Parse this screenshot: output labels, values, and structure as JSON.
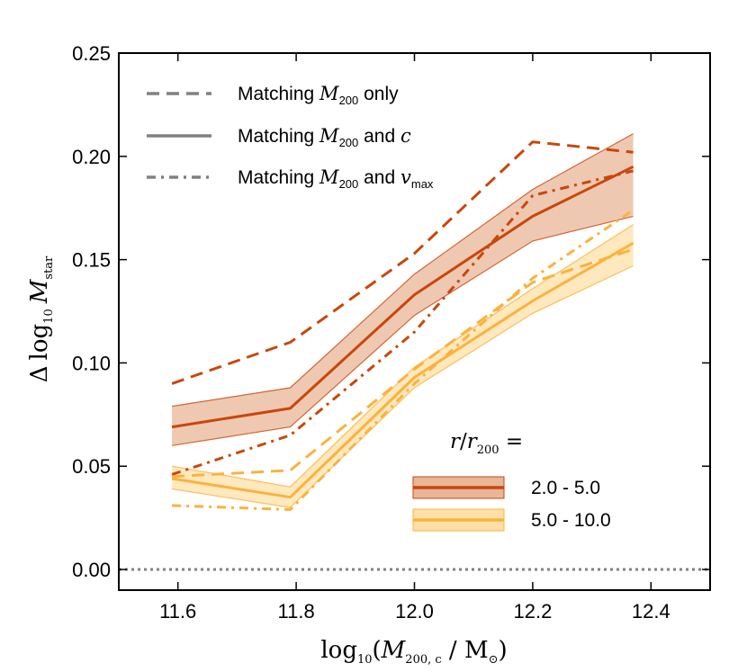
{
  "chart_data": {
    "type": "line",
    "xlabel_parts": {
      "func": "log",
      "func_sub": "10",
      "var": "M",
      "var_sub": "200, c",
      "sep": " / M",
      "unit_sub": "⊙"
    },
    "ylabel_parts": {
      "delta": "Δ",
      "func": "log",
      "func_sub": "10",
      "var": "M",
      "var_sub": "star"
    },
    "xlim": [
      11.5,
      12.5
    ],
    "ylim": [
      -0.01,
      0.25
    ],
    "xticks": [
      11.6,
      11.8,
      12.0,
      12.2,
      12.4
    ],
    "xtick_labels": [
      "11.6",
      "11.8",
      "12.0",
      "12.2",
      "12.4"
    ],
    "yticks": [
      0.0,
      0.05,
      0.1,
      0.15,
      0.2,
      0.25
    ],
    "ytick_labels": [
      "0.00",
      "0.05",
      "0.10",
      "0.15",
      "0.20",
      "0.25"
    ],
    "reference_line": {
      "y": 0.0,
      "style": "dotted",
      "color": "#808080"
    },
    "x": [
      11.59,
      11.79,
      12.0,
      12.2,
      12.37
    ],
    "series": [
      {
        "name": "2.0 - 5.0",
        "color": "#c9470a",
        "fill_color": "#e9b598",
        "matching_m200_only": [
          0.09,
          0.11,
          0.153,
          0.207,
          0.202
        ],
        "matching_m200_and_c": [
          0.069,
          0.078,
          0.133,
          0.171,
          0.195
        ],
        "matching_m200_and_c_lower": [
          0.06,
          0.069,
          0.123,
          0.159,
          0.171
        ],
        "matching_m200_and_c_upper": [
          0.079,
          0.088,
          0.143,
          0.184,
          0.211
        ],
        "matching_m200_and_vmax": [
          0.046,
          0.065,
          0.115,
          0.181,
          0.193
        ]
      },
      {
        "name": "5.0 - 10.0",
        "color": "#fbb23d",
        "fill_color": "#fde0a8",
        "matching_m200_only": [
          0.045,
          0.048,
          0.097,
          0.139,
          0.155
        ],
        "matching_m200_and_c": [
          0.044,
          0.035,
          0.093,
          0.13,
          0.158
        ],
        "matching_m200_and_c_lower": [
          0.039,
          0.03,
          0.088,
          0.124,
          0.147
        ],
        "matching_m200_and_c_upper": [
          0.05,
          0.04,
          0.098,
          0.136,
          0.167
        ],
        "matching_m200_and_vmax": [
          0.031,
          0.029,
          0.09,
          0.141,
          0.174
        ]
      }
    ],
    "style_legend": [
      {
        "style": "dashed",
        "prefix": "Matching ",
        "var": "M",
        "sub": "200",
        "suffix": " only",
        "var2": "",
        "sub2": ""
      },
      {
        "style": "solid",
        "prefix": "Matching ",
        "var": "M",
        "sub": "200",
        "suffix": " and ",
        "var2": "c",
        "sub2": ""
      },
      {
        "style": "dashdot",
        "prefix": "Matching ",
        "var": "M",
        "sub": "200",
        "suffix": " and ",
        "var2": "v",
        "sub2": "max"
      }
    ],
    "radius_legend_title": {
      "var": "r",
      "sep": "/",
      "var2": "r",
      "sub2": "200",
      "eq": " ="
    },
    "legend_placement": "top-left (line styles), bottom-right (radius bins)"
  }
}
